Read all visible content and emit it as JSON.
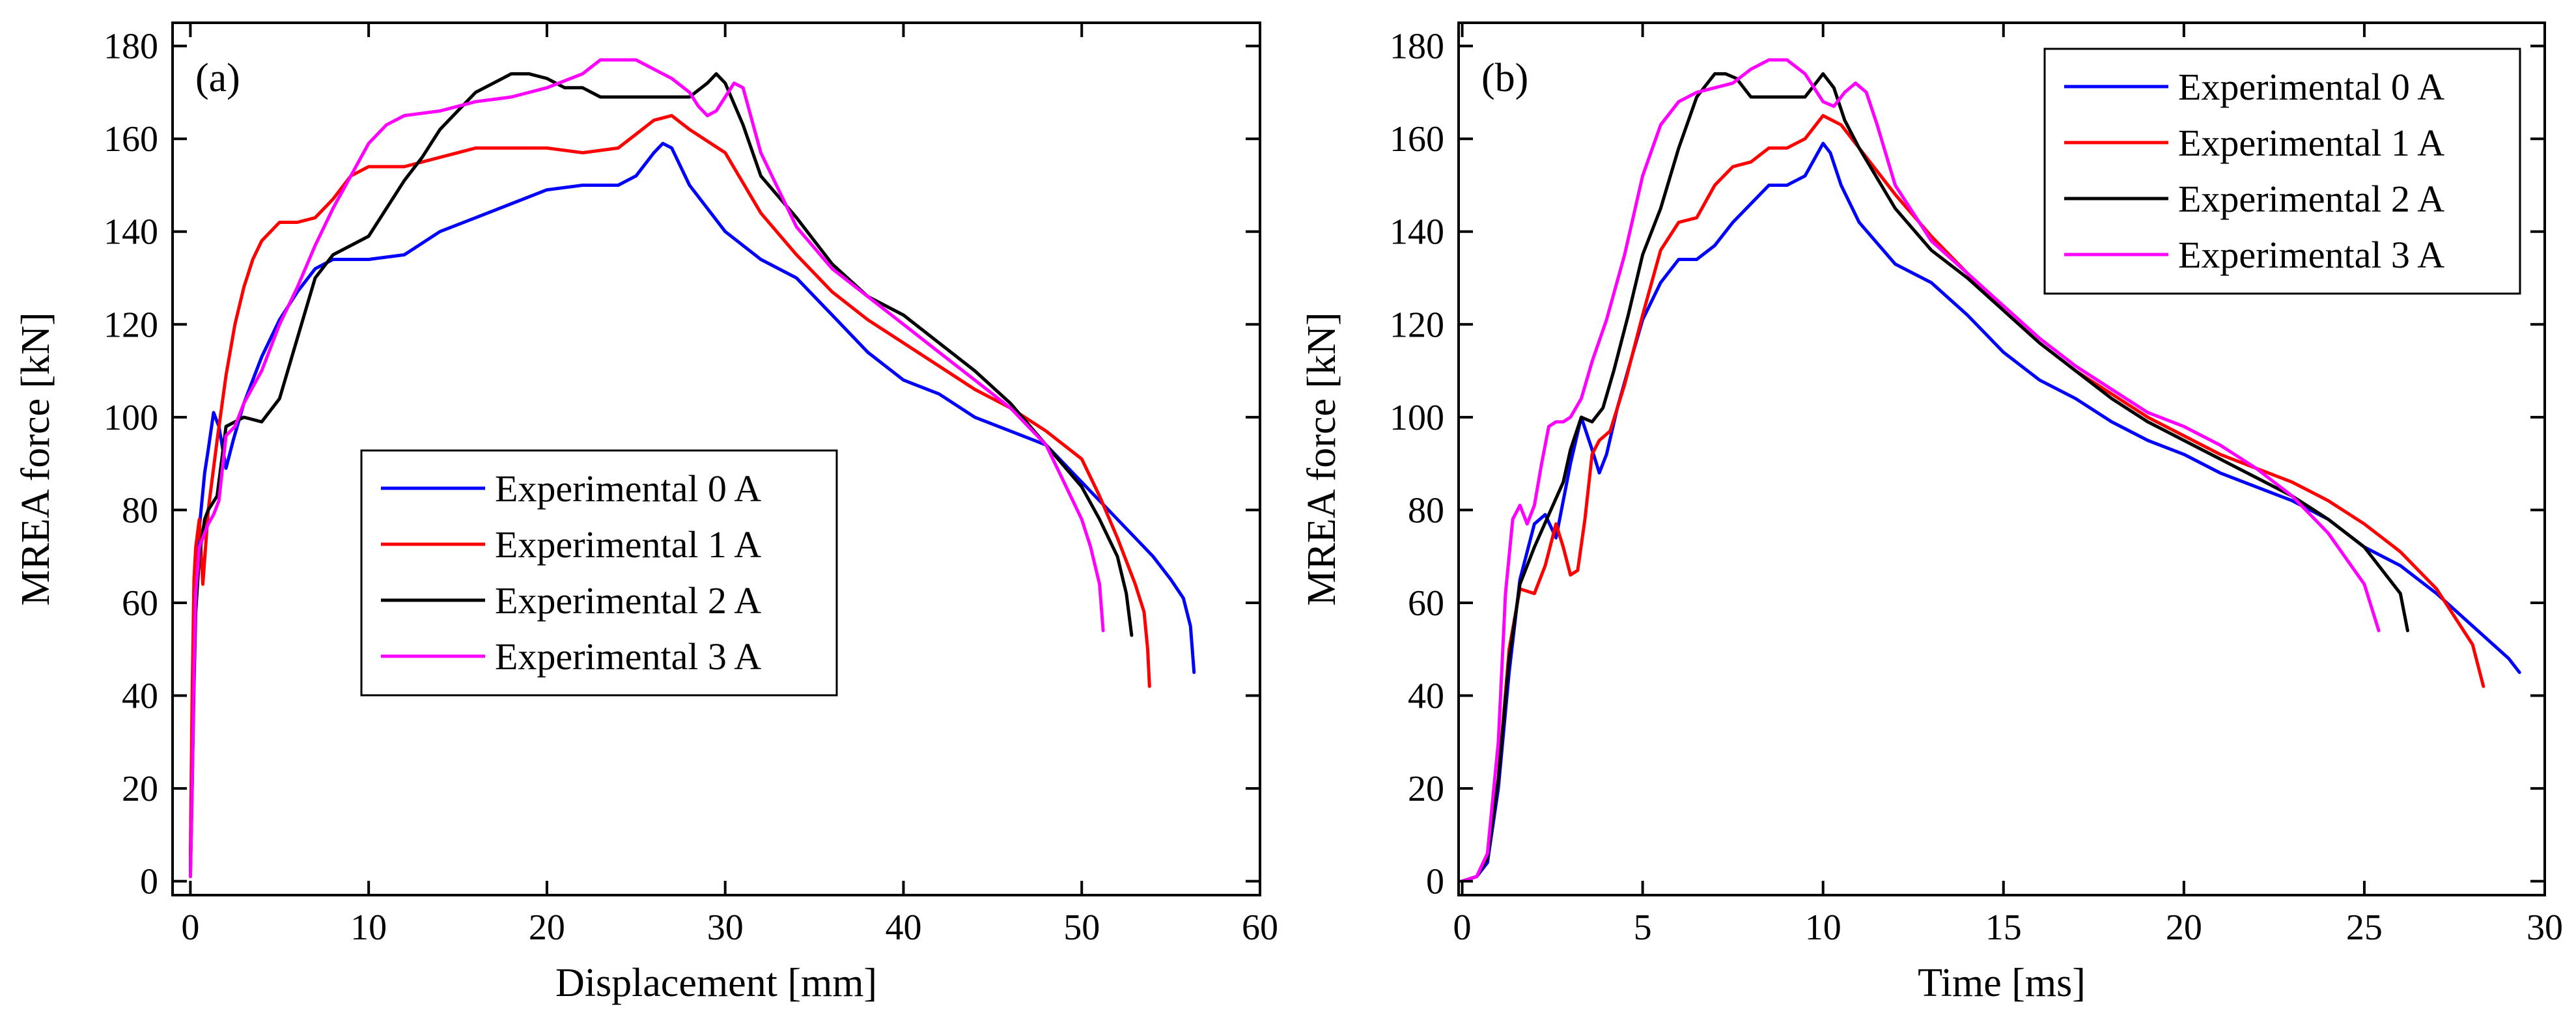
{
  "chart_data": [
    {
      "type": "line",
      "panel_label": "(a)",
      "xlabel": "Displacement [mm]",
      "ylabel": "MREA force [kN]",
      "xlim": [
        -1,
        60
      ],
      "ylim": [
        -3,
        185
      ],
      "xticks": [
        0,
        10,
        20,
        30,
        40,
        50,
        60
      ],
      "yticks": [
        0,
        20,
        40,
        60,
        80,
        100,
        120,
        140,
        160,
        180
      ],
      "xtick_labels": [
        "0",
        "10",
        "20",
        "30",
        "40",
        "50",
        "60"
      ],
      "ytick_labels": [
        "0",
        "20",
        "40",
        "60",
        "80",
        "100",
        "120",
        "140",
        "160",
        "180"
      ],
      "legend_position": "center",
      "legend_entries": [
        "Experimental 0 A",
        "Experimental 1 A",
        "Experimental 2 A",
        "Experimental 3 A"
      ],
      "series": [
        {
          "name": "Experimental 0 A",
          "color": "#0000ff",
          "x": [
            0,
            0.1,
            0.2,
            0.3,
            0.4,
            0.6,
            0.8,
            1.0,
            1.3,
            1.6,
            2.0,
            2.4,
            3.0,
            4.0,
            5.0,
            6.0,
            7.0,
            8.0,
            10.0,
            12.0,
            14.0,
            16.0,
            18.0,
            20.0,
            22.0,
            24.0,
            25.0,
            26.0,
            26.5,
            27.0,
            28.0,
            30.0,
            32.0,
            34.0,
            36.0,
            38.0,
            40.0,
            42.0,
            44.0,
            46.0,
            48.0,
            50.0,
            52.0,
            54.0,
            55.0,
            55.7,
            56.1,
            56.2,
            56.3
          ],
          "y": [
            2,
            30,
            55,
            68,
            72,
            80,
            88,
            93,
            101,
            98,
            89,
            95,
            103,
            113,
            121,
            127,
            132,
            134,
            134,
            135,
            140,
            143,
            146,
            149,
            150,
            150,
            152,
            157,
            159,
            158,
            150,
            140,
            134,
            130,
            122,
            114,
            108,
            105,
            100,
            97,
            94,
            86,
            78,
            70,
            65,
            61,
            55,
            50,
            45
          ]
        },
        {
          "name": "Experimental 1 A",
          "color": "#ff0000",
          "x": [
            0,
            0.1,
            0.2,
            0.3,
            0.5,
            0.7,
            1.0,
            1.5,
            2.0,
            2.5,
            3.0,
            3.5,
            4.0,
            4.5,
            5.0,
            5.5,
            6.0,
            7.0,
            8.0,
            9.0,
            10.0,
            12.0,
            14.0,
            16.0,
            18.0,
            20.0,
            22.0,
            24.0,
            25.0,
            26.0,
            27.0,
            28.0,
            30.0,
            32.0,
            34.0,
            36.0,
            38.0,
            40.0,
            42.0,
            44.0,
            46.0,
            48.0,
            50.0,
            51.0,
            52.0,
            53.0,
            53.5,
            53.7,
            53.8
          ],
          "y": [
            5,
            40,
            65,
            72,
            78,
            64,
            80,
            95,
            109,
            120,
            128,
            134,
            138,
            140,
            142,
            142,
            142,
            143,
            147,
            152,
            154,
            154,
            156,
            158,
            158,
            158,
            157,
            158,
            161,
            164,
            165,
            162,
            157,
            144,
            135,
            127,
            121,
            116,
            111,
            106,
            102,
            97,
            91,
            83,
            74,
            64,
            58,
            50,
            42
          ]
        },
        {
          "name": "Experimental 2 A",
          "color": "#000000",
          "x": [
            0,
            0.1,
            0.2,
            0.3,
            0.5,
            0.8,
            1.0,
            1.5,
            2.0,
            3.0,
            4.0,
            5.0,
            6.0,
            7.0,
            8.0,
            9.0,
            10.0,
            11.0,
            12.0,
            13.0,
            14.0,
            15.0,
            16.0,
            17.0,
            18.0,
            19.0,
            20.0,
            21.0,
            22.0,
            23.0,
            25.0,
            27.0,
            28.0,
            29.0,
            29.5,
            30.0,
            31.0,
            32.0,
            34.0,
            36.0,
            38.0,
            40.0,
            42.0,
            44.0,
            46.0,
            48.0,
            50.0,
            51.0,
            52.0,
            52.5,
            52.8
          ],
          "y": [
            1,
            20,
            42,
            58,
            70,
            78,
            80,
            83,
            98,
            100,
            99,
            104,
            117,
            130,
            135,
            137,
            139,
            145,
            151,
            156,
            162,
            166,
            170,
            172,
            174,
            174,
            173,
            171,
            171,
            169,
            169,
            169,
            169,
            172,
            174,
            172,
            163,
            152,
            143,
            133,
            126,
            122,
            116,
            110,
            103,
            94,
            85,
            78,
            70,
            62,
            53
          ]
        },
        {
          "name": "Experimental 3 A",
          "color": "#ff00ff",
          "x": [
            0,
            0.1,
            0.2,
            0.3,
            0.5,
            0.7,
            1.0,
            1.3,
            1.6,
            2.0,
            2.5,
            3.0,
            4.0,
            5.0,
            6.0,
            7.0,
            8.0,
            9.0,
            10.0,
            11.0,
            12.0,
            14.0,
            16.0,
            18.0,
            20.0,
            22.0,
            23.0,
            24.0,
            25.0,
            26.0,
            27.0,
            28.0,
            28.5,
            29.0,
            29.5,
            30.0,
            30.5,
            31.0,
            32.0,
            34.0,
            36.0,
            38.0,
            40.0,
            42.0,
            44.0,
            46.0,
            48.0,
            49.0,
            50.0,
            50.5,
            51.0,
            51.2
          ],
          "y": [
            1,
            20,
            45,
            62,
            72,
            74,
            77,
            79,
            82,
            96,
            98,
            103,
            110,
            120,
            128,
            137,
            145,
            152,
            159,
            163,
            165,
            166,
            168,
            169,
            171,
            174,
            177,
            177,
            177,
            175,
            173,
            170,
            167,
            165,
            166,
            169,
            172,
            171,
            157,
            141,
            132,
            126,
            120,
            114,
            108,
            102,
            94,
            86,
            78,
            72,
            64,
            54
          ]
        }
      ]
    },
    {
      "type": "line",
      "panel_label": "(b)",
      "xlabel": "Time [ms]",
      "ylabel": "MREA force [kN]",
      "xlim": [
        -0.1,
        30
      ],
      "ylim": [
        -3,
        185
      ],
      "xticks": [
        0,
        5,
        10,
        15,
        20,
        25,
        30
      ],
      "yticks": [
        0,
        20,
        40,
        60,
        80,
        100,
        120,
        140,
        160,
        180
      ],
      "xtick_labels": [
        "0",
        "5",
        "10",
        "15",
        "20",
        "25",
        "30"
      ],
      "ytick_labels": [
        "0",
        "20",
        "40",
        "60",
        "80",
        "100",
        "120",
        "140",
        "160",
        "180"
      ],
      "legend_position": "top-right",
      "legend_entries": [
        "Experimental 0 A",
        "Experimental 1 A",
        "Experimental 2 A",
        "Experimental 3 A"
      ],
      "series": [
        {
          "name": "Experimental 0 A",
          "color": "#0000ff",
          "x": [
            0,
            0.4,
            0.7,
            1.0,
            1.3,
            1.6,
            2.0,
            2.3,
            2.6,
            3.0,
            3.3,
            3.6,
            3.8,
            4.0,
            4.3,
            4.7,
            5.0,
            5.5,
            6.0,
            6.5,
            7.0,
            7.5,
            8.0,
            8.5,
            9.0,
            9.5,
            10.0,
            10.2,
            10.5,
            11.0,
            12.0,
            13.0,
            14.0,
            15.0,
            16.0,
            17.0,
            18.0,
            19.0,
            20.0,
            21.0,
            22.0,
            23.0,
            24.0,
            25.0,
            26.0,
            27.0,
            28.0,
            29.0,
            29.3
          ],
          "y": [
            0,
            1,
            4,
            20,
            45,
            65,
            77,
            79,
            74,
            90,
            100,
            93,
            88,
            92,
            102,
            113,
            121,
            129,
            134,
            134,
            137,
            142,
            146,
            150,
            150,
            152,
            159,
            157,
            150,
            142,
            133,
            129,
            122,
            114,
            108,
            104,
            99,
            95,
            92,
            88,
            85,
            82,
            78,
            72,
            68,
            62,
            55,
            48,
            45
          ]
        },
        {
          "name": "Experimental 1 A",
          "color": "#ff0000",
          "x": [
            0,
            0.4,
            0.7,
            1.0,
            1.3,
            1.6,
            2.0,
            2.3,
            2.6,
            2.8,
            3.0,
            3.2,
            3.4,
            3.6,
            3.8,
            4.1,
            4.5,
            5.0,
            5.5,
            6.0,
            6.5,
            7.0,
            7.5,
            8.0,
            8.5,
            9.0,
            9.5,
            10.0,
            10.5,
            11.0,
            12.0,
            13.0,
            14.0,
            15.0,
            16.0,
            17.0,
            18.0,
            19.0,
            20.0,
            21.0,
            22.0,
            23.0,
            24.0,
            25.0,
            26.0,
            27.0,
            28.0,
            28.3
          ],
          "y": [
            0,
            1,
            5,
            22,
            50,
            63,
            62,
            68,
            77,
            72,
            66,
            67,
            78,
            92,
            95,
            97,
            107,
            122,
            136,
            142,
            143,
            150,
            154,
            155,
            158,
            158,
            160,
            165,
            163,
            158,
            148,
            139,
            131,
            123,
            116,
            110,
            105,
            100,
            96,
            92,
            89,
            86,
            82,
            77,
            71,
            63,
            51,
            42
          ]
        },
        {
          "name": "Experimental 2 A",
          "color": "#000000",
          "x": [
            0,
            0.4,
            0.7,
            1.0,
            1.3,
            1.6,
            2.0,
            2.4,
            2.8,
            3.0,
            3.3,
            3.6,
            3.9,
            4.2,
            4.6,
            5.0,
            5.5,
            6.0,
            6.5,
            7.0,
            7.3,
            7.6,
            8.0,
            8.5,
            9.0,
            9.5,
            10.0,
            10.3,
            10.6,
            11.0,
            12.0,
            13.0,
            14.0,
            15.0,
            16.0,
            17.0,
            18.0,
            19.0,
            20.0,
            21.0,
            22.0,
            23.0,
            24.0,
            25.0,
            26.0,
            26.2
          ],
          "y": [
            0,
            1,
            5,
            22,
            48,
            64,
            72,
            79,
            86,
            93,
            100,
            99,
            102,
            110,
            122,
            135,
            145,
            158,
            169,
            174,
            174,
            173,
            169,
            169,
            169,
            169,
            174,
            171,
            164,
            158,
            145,
            136,
            130,
            123,
            116,
            110,
            104,
            99,
            95,
            91,
            87,
            83,
            78,
            72,
            62,
            54
          ]
        },
        {
          "name": "Experimental 3 A",
          "color": "#ff00ff",
          "x": [
            0,
            0.4,
            0.7,
            1.0,
            1.2,
            1.4,
            1.6,
            1.8,
            2.0,
            2.2,
            2.4,
            2.6,
            2.8,
            3.0,
            3.3,
            3.6,
            4.0,
            4.5,
            5.0,
            5.5,
            6.0,
            6.5,
            7.0,
            7.5,
            8.0,
            8.5,
            9.0,
            9.5,
            10.0,
            10.3,
            10.6,
            10.9,
            11.2,
            11.5,
            12.0,
            13.0,
            14.0,
            15.0,
            16.0,
            17.0,
            18.0,
            19.0,
            20.0,
            21.0,
            22.0,
            23.0,
            24.0,
            25.0,
            25.4
          ],
          "y": [
            0,
            1,
            6,
            30,
            62,
            78,
            81,
            77,
            81,
            90,
            98,
            99,
            99,
            100,
            104,
            112,
            121,
            135,
            152,
            163,
            168,
            170,
            171,
            172,
            175,
            177,
            177,
            174,
            168,
            167,
            170,
            172,
            170,
            163,
            150,
            138,
            131,
            124,
            117,
            111,
            106,
            101,
            98,
            94,
            89,
            83,
            75,
            64,
            54
          ]
        }
      ]
    }
  ]
}
